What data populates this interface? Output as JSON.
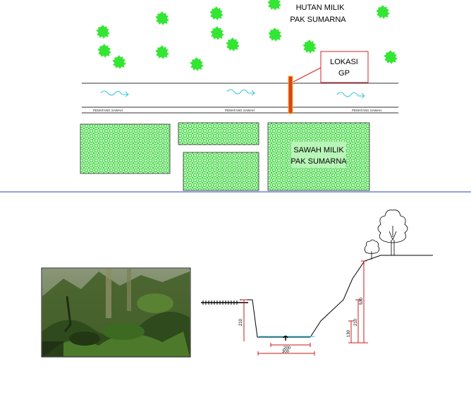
{
  "plan": {
    "forest_label_line1": "HUTAN MILIK",
    "forest_label_line2": "PAK SUMARNA",
    "location_label_line1": "LOKASI",
    "location_label_line2": "GP",
    "paddy_label_line1": "SAWAH MILIK",
    "paddy_label_line2": "PAK SUMARNA",
    "embankment_labels": [
      "PEMATANG SAWAH",
      "PEMATANG SAWAH",
      "PEMATANG SAWAH"
    ],
    "colors": {
      "tree": "#33e633",
      "paddy_fill": "#9ef29e",
      "canal_flow": "#33c6e6",
      "location_marker": "#e0401c",
      "callout_border": "#d42020",
      "divider": "#2a3fc9"
    }
  },
  "section": {
    "photo_label": "site-photo",
    "dimensions": {
      "left_bank_height": "210",
      "bottom_width": "200",
      "top_width": "300",
      "right_step_height": "130",
      "right_bank_height": "210",
      "right_total_height": "530"
    },
    "colors": {
      "dimension": "#cc1a1a",
      "water": "#33c6e6"
    }
  }
}
